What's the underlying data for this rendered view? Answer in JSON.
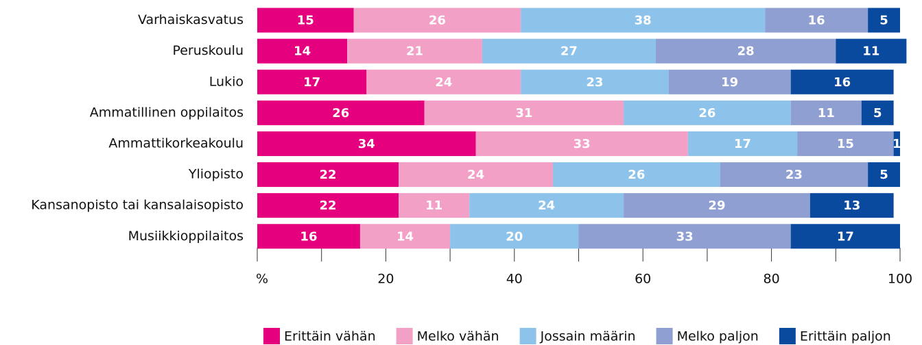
{
  "chart_data": {
    "type": "stacked_barh",
    "categories": [
      "Varhaiskasvatus",
      "Peruskoulu",
      "Lukio",
      "Ammatillinen oppilaitos",
      "Ammattikorkeakoulu",
      "Yliopisto",
      "Kansanopisto tai kansalaisopisto",
      "Musiikkioppilaitos"
    ],
    "series": [
      {
        "name": "Erittäin vähän",
        "color": "#e5007e",
        "values": [
          15,
          14,
          17,
          26,
          34,
          22,
          22,
          16
        ]
      },
      {
        "name": "Melko vähän",
        "color": "#f3a0c7",
        "values": [
          26,
          21,
          24,
          31,
          33,
          24,
          11,
          14
        ]
      },
      {
        "name": "Jossain määrin",
        "color": "#8dc3ea",
        "values": [
          38,
          27,
          23,
          26,
          17,
          26,
          24,
          20
        ]
      },
      {
        "name": "Melko paljon",
        "color": "#8f9fd2",
        "values": [
          16,
          28,
          19,
          11,
          15,
          23,
          29,
          33
        ]
      },
      {
        "name": "Erittäin paljon",
        "color": "#0a4a9e",
        "values": [
          5,
          11,
          16,
          5,
          1,
          5,
          13,
          17
        ]
      }
    ],
    "xlim": [
      0,
      100
    ],
    "xticks": [
      {
        "value": 0,
        "label": "%"
      },
      20,
      40,
      60,
      80,
      100
    ],
    "minor_xticks": [
      10,
      30,
      50,
      70,
      90
    ],
    "legend": "bottom-right"
  }
}
